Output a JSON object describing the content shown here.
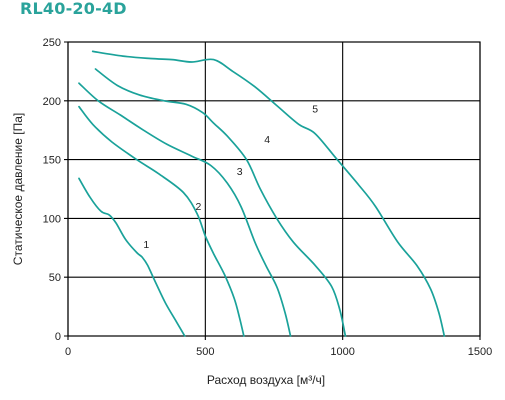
{
  "chart_data": {
    "type": "line",
    "title": "RL40-20-4D",
    "xlabel": "Расход воздуха [м³/ч]",
    "ylabel": "Статическое давление [Па]",
    "xlim": [
      0,
      1500
    ],
    "ylim": [
      0,
      250
    ],
    "xticks": [
      0,
      500,
      1000,
      1500
    ],
    "yticks": [
      0,
      50,
      100,
      150,
      200,
      250
    ],
    "grid": true,
    "curve_color": "#1aa29a",
    "series": [
      {
        "name": "1",
        "label_at": [
          285,
          75
        ],
        "points": [
          [
            40,
            134
          ],
          [
            80,
            118
          ],
          [
            120,
            106
          ],
          [
            150,
            103
          ],
          [
            175,
            96
          ],
          [
            210,
            82
          ],
          [
            250,
            71
          ],
          [
            270,
            67
          ],
          [
            290,
            60
          ],
          [
            320,
            45
          ],
          [
            355,
            28
          ],
          [
            395,
            12
          ],
          [
            425,
            0
          ]
        ]
      },
      {
        "name": "2",
        "label_at": [
          475,
          107
        ],
        "points": [
          [
            40,
            195
          ],
          [
            90,
            180
          ],
          [
            160,
            165
          ],
          [
            250,
            150
          ],
          [
            330,
            138
          ],
          [
            420,
            122
          ],
          [
            470,
            104
          ],
          [
            500,
            85
          ],
          [
            530,
            70
          ],
          [
            570,
            52
          ],
          [
            605,
            32
          ],
          [
            625,
            15
          ],
          [
            640,
            0
          ]
        ]
      },
      {
        "name": "3",
        "label_at": [
          625,
          137
        ],
        "points": [
          [
            40,
            215
          ],
          [
            110,
            200
          ],
          [
            190,
            188
          ],
          [
            275,
            175
          ],
          [
            360,
            163
          ],
          [
            450,
            153
          ],
          [
            520,
            145
          ],
          [
            580,
            130
          ],
          [
            630,
            110
          ],
          [
            680,
            80
          ],
          [
            720,
            60
          ],
          [
            760,
            42
          ],
          [
            790,
            20
          ],
          [
            810,
            0
          ]
        ]
      },
      {
        "name": "4",
        "label_at": [
          725,
          164
        ],
        "points": [
          [
            100,
            227
          ],
          [
            180,
            213
          ],
          [
            260,
            205
          ],
          [
            350,
            200
          ],
          [
            430,
            197
          ],
          [
            490,
            190
          ],
          [
            530,
            181
          ],
          [
            580,
            170
          ],
          [
            650,
            150
          ],
          [
            700,
            125
          ],
          [
            760,
            100
          ],
          [
            820,
            80
          ],
          [
            900,
            60
          ],
          [
            960,
            42
          ],
          [
            990,
            22
          ],
          [
            1010,
            0
          ]
        ]
      },
      {
        "name": "5",
        "label_at": [
          900,
          190
        ],
        "points": [
          [
            90,
            242
          ],
          [
            200,
            238
          ],
          [
            300,
            236
          ],
          [
            380,
            235
          ],
          [
            450,
            233
          ],
          [
            530,
            235
          ],
          [
            600,
            225
          ],
          [
            680,
            212
          ],
          [
            760,
            196
          ],
          [
            840,
            180
          ],
          [
            900,
            172
          ],
          [
            980,
            150
          ],
          [
            1060,
            128
          ],
          [
            1120,
            110
          ],
          [
            1200,
            80
          ],
          [
            1270,
            60
          ],
          [
            1320,
            40
          ],
          [
            1350,
            20
          ],
          [
            1370,
            0
          ]
        ]
      }
    ]
  }
}
